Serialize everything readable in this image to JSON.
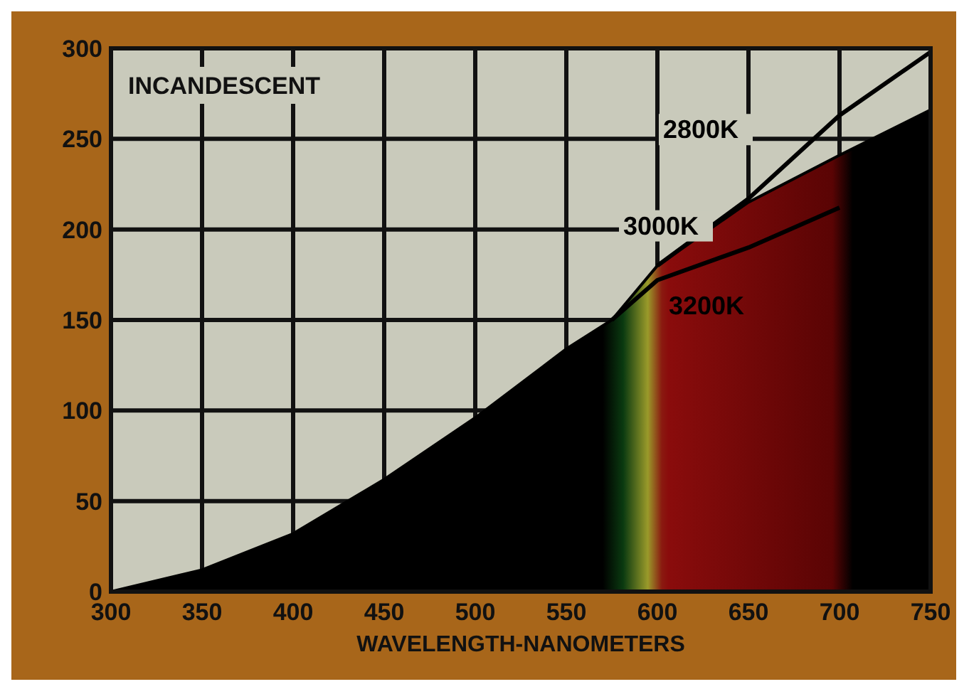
{
  "chart_data": {
    "type": "line",
    "xlabel": "WAVELENGTH-NANOMETERS",
    "annotations": [
      "INCANDESCENT"
    ],
    "xlim": [
      300,
      750
    ],
    "ylim": [
      0,
      300
    ],
    "xticks": [
      300,
      350,
      400,
      450,
      500,
      550,
      600,
      650,
      700,
      750
    ],
    "yticks": [
      0,
      50,
      100,
      150,
      200,
      250,
      300
    ],
    "grid": true,
    "series": [
      {
        "name": "2800K",
        "color": "#000000",
        "x": [
          600,
          650,
          700,
          750
        ],
        "values": [
          180,
          217,
          263,
          298
        ]
      },
      {
        "name": "3000K",
        "type": "area",
        "color": "#000000",
        "x": [
          300,
          350,
          400,
          450,
          500,
          550,
          575,
          600,
          650,
          700,
          750
        ],
        "values": [
          0,
          12,
          32,
          62,
          96,
          134,
          150,
          180,
          215,
          241,
          266
        ]
      },
      {
        "name": "3200K",
        "color": "#000000",
        "x": [
          575,
          600,
          650,
          700
        ],
        "values": [
          150,
          172,
          190,
          212
        ]
      }
    ]
  }
}
